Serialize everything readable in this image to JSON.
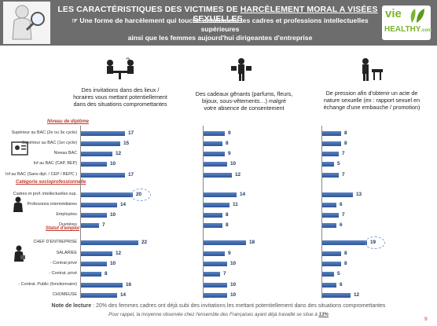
{
  "header": {
    "title_prefix": "LES CARACTÉRISTIQUES DES VICTIMES DE ",
    "title_underlined": "HARCÈLEMENT MORAL A VISÉES SEXUELLES",
    "subtitle_line1": "☞ Une forme de harcèlement qui touche notamment les cadres et professions intellectuelles supérieures",
    "subtitle_line2": "ainsi que les femmes aujourd'hui dirigeantes d'entreprise",
    "brand_top": "vie",
    "brand_bottom": "HEALTHY",
    "brand_suffix": ".com"
  },
  "columns": [
    {
      "heading": "Des invitations dans des lieux / horaires vous mettant potentiellement dans des situations compromettantes"
    },
    {
      "heading": "Des cadeaux gênants (parfums, fleurs, bijoux, sous-vêtements…) malgré votre absence de consentement"
    },
    {
      "heading": "De pression afin d'obtenir un acte de nature sexuelle (ex : rapport sexuel en échange d'une embauche / promotion)"
    }
  ],
  "groups": [
    {
      "title": "Niveau de diplôme",
      "rows": [
        "Supérieur au BAC (2e ou 3e cycle)",
        "Supérieur au BAC (1er cycle)",
        "Niveau BAC",
        "Inf au BAC (CAP, BEP)",
        "Inf au BAC (Sans dipl. / CEP / BEPC )"
      ]
    },
    {
      "title": "Catégorie socioprofessionnelle",
      "rows": [
        "Cadres et prof. intellectuelles sup.",
        "Professions intermédiaires",
        "Employées",
        "Ouvrières"
      ]
    },
    {
      "title": "Statut d'emploi",
      "rows": [
        "CHEF D'ENTREPRISE",
        "SALARIEE",
        "- Contrat privé",
        "- Contrat. privé",
        "- Contrat. Public (fonctionnaire)",
        "CHOMEUSE"
      ]
    }
  ],
  "chart_data": {
    "type": "bar",
    "orientation": "horizontal",
    "series": [
      {
        "values": [
          17,
          15,
          12,
          10,
          17,
          20,
          14,
          10,
          7,
          22,
          12,
          10,
          8,
          16,
          14
        ]
      },
      {
        "values": [
          9,
          8,
          9,
          10,
          12,
          14,
          11,
          8,
          8,
          18,
          9,
          10,
          7,
          10,
          10
        ]
      },
      {
        "values": [
          8,
          8,
          7,
          5,
          7,
          13,
          6,
          7,
          6,
          19,
          8,
          8,
          5,
          6,
          12
        ]
      }
    ],
    "highlighted": [
      [
        0,
        5
      ],
      [
        2,
        9
      ]
    ]
  },
  "notes": {
    "note_bold": "Note de lecture",
    "note_text": " : 20% des femmes cadres ont déjà subi des invitations les mettant potentiellement dans des situations compromettantes",
    "note2_text": "Pour rappel, la moyenne observée chez l'ensemble des Françaises ayant déjà travaillé se situe à ",
    "note2_value": "13%",
    "page": "9"
  }
}
